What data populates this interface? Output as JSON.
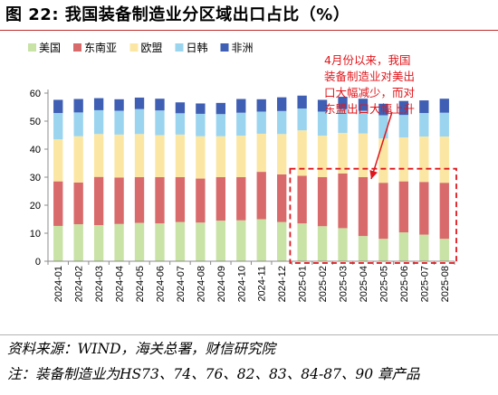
{
  "page": {
    "title": "图 22:  我国装备制造业分区域出口占比（%）",
    "source": "资料来源：WIND，海关总署，财信研究院",
    "footnote": "注：装备制造业为HS73、74、76、82、83、84-87、90 章产品"
  },
  "chart_data": {
    "type": "bar",
    "stacked": true,
    "title": "",
    "xlabel": "",
    "ylabel": "",
    "ylim": [
      0,
      60
    ],
    "yticks": [
      0,
      10,
      20,
      30,
      40,
      50,
      60
    ],
    "grid": false,
    "legend": "top-left",
    "categories": [
      "2024-01",
      "2024-02",
      "2024-03",
      "2024-04",
      "2024-05",
      "2024-06",
      "2024-07",
      "2024-08",
      "2024-09",
      "2024-10",
      "2024-11",
      "2024-12",
      "2025-01",
      "2025-02",
      "2025-03",
      "2025-04",
      "2025-05",
      "2025-06",
      "2025-07",
      "2025-08"
    ],
    "series": [
      {
        "name": "美国",
        "color": "#c9e2a6",
        "values": [
          12.6,
          13.2,
          12.9,
          13.3,
          13.7,
          13.5,
          14.0,
          13.8,
          14.5,
          14.6,
          15.0,
          14.0,
          13.5,
          12.5,
          11.8,
          9.0,
          8.0,
          10.3,
          9.5,
          8.0
        ]
      },
      {
        "name": "东南亚",
        "color": "#d96a6b",
        "values": [
          15.9,
          14.9,
          17.2,
          16.6,
          16.3,
          16.5,
          16.0,
          15.7,
          15.5,
          15.4,
          16.9,
          17.0,
          17.0,
          17.5,
          19.5,
          21.0,
          20.0,
          18.2,
          18.8,
          20.0
        ]
      },
      {
        "name": "欧盟",
        "color": "#fbe7a3",
        "values": [
          15.0,
          16.5,
          15.3,
          15.3,
          15.4,
          15.0,
          15.2,
          15.1,
          14.6,
          14.8,
          13.6,
          14.4,
          16.2,
          14.8,
          14.5,
          15.6,
          15.8,
          15.7,
          16.2,
          16.5
        ]
      },
      {
        "name": "日韩",
        "color": "#9bd4ef",
        "values": [
          9.4,
          8.5,
          8.5,
          8.5,
          8.9,
          8.8,
          7.6,
          8.0,
          7.9,
          8.2,
          7.9,
          8.2,
          7.8,
          8.6,
          8.5,
          8.1,
          8.3,
          8.0,
          8.4,
          8.5
        ]
      },
      {
        "name": "非洲",
        "color": "#3f5fb5",
        "values": [
          4.7,
          4.8,
          4.3,
          4.1,
          4.1,
          4.2,
          3.9,
          3.7,
          4.0,
          4.9,
          4.4,
          4.9,
          4.6,
          4.2,
          4.4,
          4.3,
          4.1,
          5.0,
          4.5,
          5.0
        ]
      }
    ],
    "annotation": {
      "text": "4月份以来，我国装备制造业对美出口大幅减少，而对东盟出口大幅上升",
      "color": "#e0161b",
      "highlight_range": [
        "2025-01",
        "2025-08"
      ]
    }
  }
}
